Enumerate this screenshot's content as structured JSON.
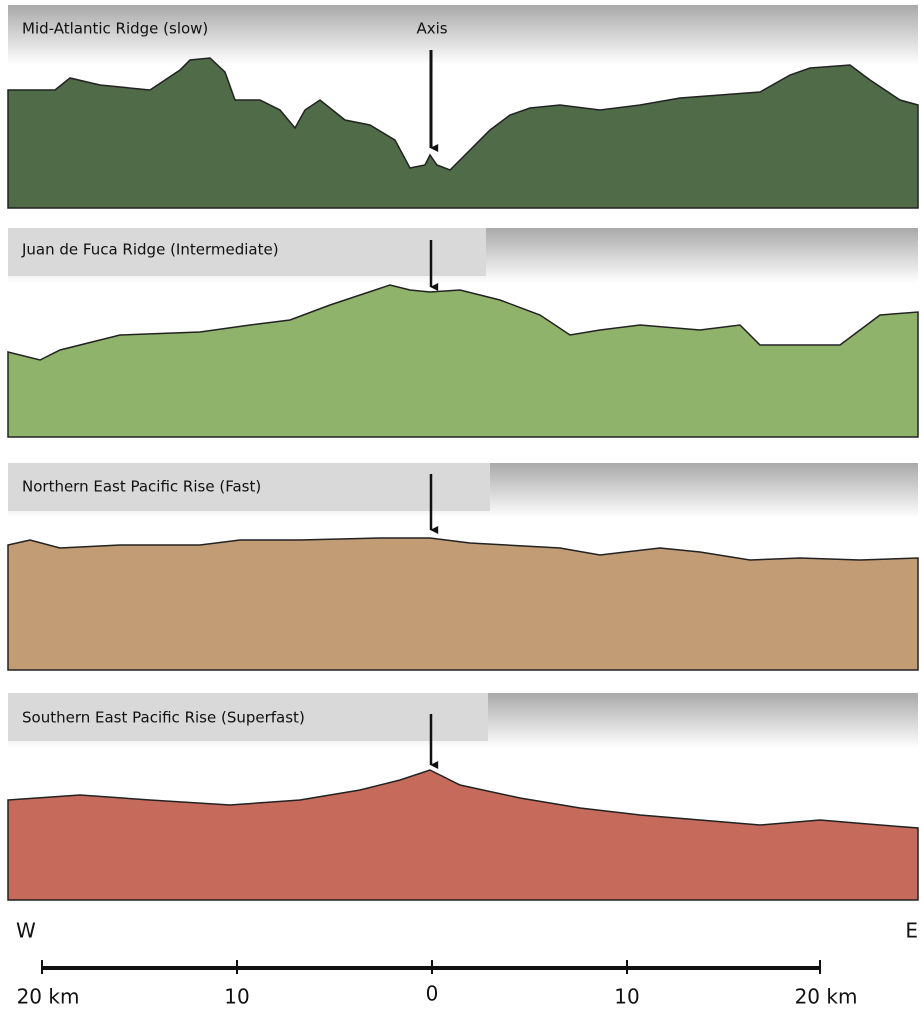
{
  "panels": [
    {
      "label": "Mid-Atlantic Ridge (slow)"
    },
    {
      "label": "Juan de Fuca Ridge (Intermediate)"
    },
    {
      "label": "Northern East Pacific Rise (Fast)"
    },
    {
      "label": "Southern East Pacific Rise (Superfast)"
    }
  ],
  "axis_label": "Axis",
  "west": "W",
  "east": "E",
  "scale": {
    "labels": [
      "20 km",
      "10",
      "0",
      "10",
      "20 km"
    ]
  }
}
